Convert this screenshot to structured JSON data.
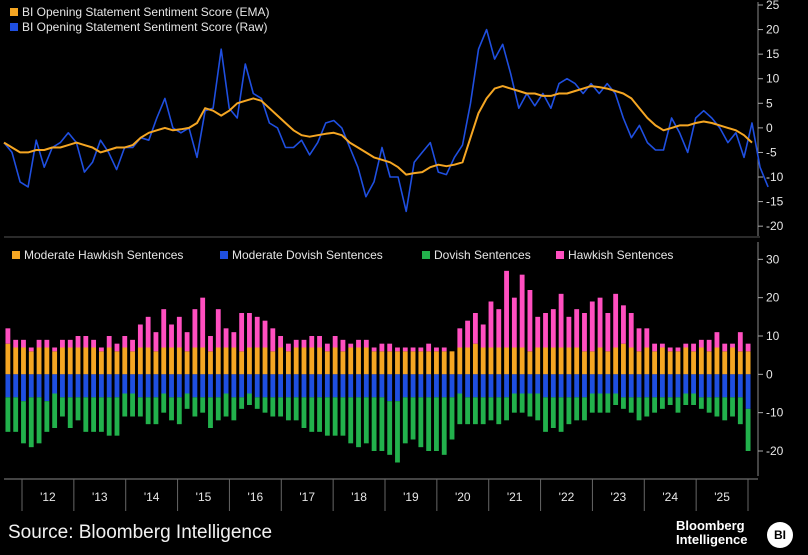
{
  "chart_data": [
    {
      "type": "line",
      "legend": [
        "BI Opening Statement Sentiment Score (EMA)",
        "BI Opening Statement Sentiment Score (Raw)"
      ],
      "ylim": [
        -22,
        25
      ],
      "yticks": [
        "25",
        "20",
        "15",
        "10",
        "5",
        "0",
        "-5",
        "-10",
        "-15",
        "-20"
      ],
      "series": [
        {
          "name": "BI Opening Statement Sentiment Score (EMA)",
          "color": "#f5a623",
          "values": [
            -3,
            -4,
            -5,
            -5,
            -4.5,
            -4.5,
            -4,
            -4,
            -3.5,
            -3,
            -3.5,
            -4,
            -5,
            -4.5,
            -4,
            -4,
            -3.5,
            -2,
            -1,
            -0.5,
            0,
            -0.5,
            -0.3,
            0,
            1,
            4,
            3.5,
            2.5,
            3.5,
            5,
            5.5,
            6,
            5.5,
            4,
            2.5,
            1,
            -0.5,
            -1.5,
            -1.8,
            -1.5,
            -1.2,
            -1,
            -1.5,
            -3,
            -4,
            -5,
            -6,
            -6.5,
            -7,
            -8,
            -9.5,
            -9.2,
            -9,
            -8,
            -7.5,
            -7.8,
            -7.5,
            -7,
            -2,
            3,
            6,
            8,
            8.5,
            8,
            7.5,
            7,
            7,
            6.5,
            6.5,
            7,
            7,
            7.5,
            8,
            8.5,
            8.3,
            8,
            7.5,
            7,
            6,
            4,
            2,
            0.5,
            -0.5,
            0,
            0.5,
            0.5,
            1,
            1.3,
            1,
            0.5,
            0,
            -0.5,
            -1.5,
            -3
          ]
        },
        {
          "name": "BI Opening Statement Sentiment Score (Raw)",
          "color": "#1f4fe0",
          "values": [
            -3,
            -5,
            -11,
            -12,
            -2.5,
            -8,
            -4,
            -3,
            -1,
            -3,
            -9,
            -7,
            -2.5,
            -5,
            -8.5,
            -4,
            -4,
            -2,
            -2.5,
            2,
            6,
            0,
            -1,
            0,
            -6,
            3.5,
            4,
            16,
            4,
            2,
            13,
            7,
            6,
            1,
            0,
            -4,
            -4,
            -2.5,
            -5.5,
            -3,
            1,
            1.5,
            0,
            -4,
            -8,
            -14,
            -11,
            -4,
            -10,
            -10,
            -17,
            -7,
            -5,
            -3,
            -9,
            -9.5,
            -6,
            -3.5,
            5,
            16,
            20,
            14,
            17,
            11,
            4,
            7,
            4.5,
            7,
            4,
            9,
            10,
            9,
            7,
            9,
            7,
            9,
            7,
            2,
            -2,
            0.5,
            -3,
            -4.5,
            -4.5,
            2,
            -1,
            -5,
            2,
            3.5,
            2,
            0,
            -3,
            -1,
            -6,
            1,
            -8,
            -12
          ]
        }
      ]
    },
    {
      "type": "bar",
      "stacked": true,
      "legend": [
        "Moderate Hawkish Sentences",
        "Moderate Dovish Sentences",
        "Dovish Sentences",
        "Hawkish Sentences"
      ],
      "ylim": [
        -26,
        34
      ],
      "yticks": [
        "30",
        "20",
        "10",
        "0",
        "-10",
        "-20"
      ],
      "x_ticks": [
        "'12",
        "'13",
        "'14",
        "'15",
        "'16",
        "'17",
        "'18",
        "'19",
        "'20",
        "'21",
        "'22",
        "'23",
        "'24",
        "'25"
      ],
      "colors": {
        "mod_hawk": "#f5a623",
        "mod_dove": "#1f4fe0",
        "dove": "#22b14c",
        "hawk": "#ff4fc0"
      },
      "series": [
        {
          "name": "Moderate Hawkish Sentences",
          "key": "mod_hawk",
          "values": [
            8,
            7,
            7,
            6,
            7,
            7,
            6,
            7,
            7,
            7,
            7,
            7,
            6,
            7,
            6,
            7,
            6,
            7,
            7,
            6,
            7,
            7,
            7,
            6,
            7,
            7,
            6,
            7,
            7,
            7,
            6,
            7,
            7,
            7,
            6,
            7,
            6,
            7,
            7,
            7,
            7,
            6,
            7,
            6,
            7,
            7,
            7,
            6,
            6,
            6,
            6,
            6,
            6,
            6,
            6,
            6,
            6,
            6,
            7,
            7,
            8,
            7,
            7,
            7,
            7,
            7,
            7,
            6,
            7,
            7,
            7,
            7,
            7,
            7,
            6,
            6,
            7,
            6,
            7,
            8,
            7,
            6,
            7,
            6,
            7,
            6,
            6,
            7,
            6,
            7,
            6,
            7,
            6,
            7,
            6,
            6
          ]
        },
        {
          "name": "Hawkish Sentences",
          "key": "hawk",
          "values": [
            4,
            2,
            2,
            1,
            2,
            2,
            1,
            2,
            2,
            3,
            3,
            2,
            1,
            3,
            2,
            3,
            3,
            6,
            8,
            5,
            10,
            6,
            8,
            5,
            10,
            13,
            4,
            10,
            5,
            4,
            10,
            9,
            8,
            7,
            6,
            3,
            2,
            2,
            2,
            3,
            3,
            2,
            3,
            3,
            1,
            2,
            2,
            1,
            2,
            2,
            1,
            1,
            1,
            1,
            2,
            1,
            1,
            0,
            5,
            7,
            8,
            6,
            12,
            10,
            20,
            13,
            19,
            16,
            8,
            9,
            10,
            14,
            8,
            10,
            10,
            13,
            13,
            10,
            14,
            10,
            9,
            6,
            5,
            2,
            1,
            1,
            1,
            1,
            2,
            2,
            3,
            4,
            2,
            1,
            5,
            2
          ]
        },
        {
          "name": "Moderate Dovish Sentences",
          "key": "mod_dove",
          "values": [
            -6,
            -6,
            -7,
            -6,
            -6,
            -7,
            -5,
            -6,
            -6,
            -6,
            -6,
            -6,
            -6,
            -6,
            -6,
            -5,
            -5,
            -6,
            -6,
            -6,
            -5,
            -6,
            -6,
            -5,
            -6,
            -6,
            -6,
            -6,
            -5,
            -6,
            -6,
            -5,
            -6,
            -6,
            -6,
            -6,
            -6,
            -6,
            -6,
            -6,
            -6,
            -6,
            -6,
            -6,
            -6,
            -6,
            -6,
            -6,
            -6,
            -7,
            -7,
            -6,
            -6,
            -6,
            -6,
            -6,
            -6,
            -6,
            -5,
            -6,
            -6,
            -6,
            -6,
            -6,
            -6,
            -5,
            -5,
            -5,
            -5,
            -6,
            -6,
            -6,
            -6,
            -6,
            -6,
            -5,
            -5,
            -5,
            -5,
            -6,
            -6,
            -6,
            -6,
            -6,
            -6,
            -6,
            -6,
            -5,
            -5,
            -6,
            -6,
            -6,
            -6,
            -6,
            -6,
            -9
          ]
        },
        {
          "name": "Dovish Sentences",
          "key": "dove",
          "values": [
            -9,
            -9,
            -11,
            -13,
            -12,
            -8,
            -9,
            -5,
            -8,
            -6,
            -9,
            -9,
            -9,
            -10,
            -10,
            -6,
            -6,
            -5,
            -7,
            -7,
            -5,
            -6,
            -7,
            -4,
            -5,
            -4,
            -8,
            -6,
            -6,
            -6,
            -3,
            -3,
            -3,
            -4,
            -5,
            -5,
            -6,
            -6,
            -8,
            -9,
            -9,
            -10,
            -10,
            -10,
            -12,
            -13,
            -12,
            -14,
            -14,
            -14,
            -16,
            -12,
            -11,
            -13,
            -14,
            -14,
            -15,
            -11,
            -8,
            -7,
            -7,
            -7,
            -6,
            -7,
            -6,
            -5,
            -5,
            -6,
            -7,
            -9,
            -8,
            -9,
            -7,
            -6,
            -6,
            -5,
            -5,
            -5,
            -3,
            -3,
            -4,
            -6,
            -5,
            -4,
            -3,
            -2,
            -4,
            -3,
            -3,
            -3,
            -4,
            -5,
            -6,
            -5,
            -7,
            -11
          ]
        }
      ]
    }
  ],
  "footer": {
    "source": "Source: Bloomberg Intelligence",
    "logo_line1": "Bloomberg",
    "logo_line2": "Intelligence",
    "logo_badge": "BI"
  }
}
